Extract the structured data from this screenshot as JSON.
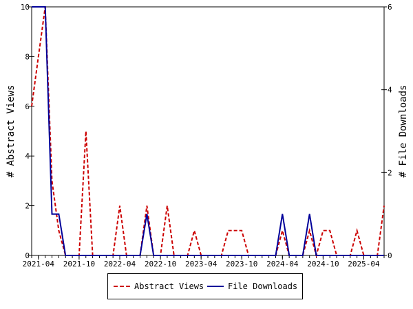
{
  "chart_data": {
    "type": "line",
    "x_tick_labels": [
      "2021-04",
      "2021-10",
      "2022-04",
      "2022-10",
      "2023-04",
      "2023-10",
      "2024-04",
      "2024-10",
      "2025-04"
    ],
    "x_range": [
      "2021-03",
      "2025-07"
    ],
    "y_left": {
      "label": "# Abstract Views",
      "range": [
        0,
        10
      ],
      "ticks": [
        0,
        2,
        4,
        6,
        8,
        10
      ]
    },
    "y_right": {
      "label": "# File Downloads",
      "range": [
        0,
        6
      ],
      "ticks": [
        0,
        2,
        4,
        6
      ]
    },
    "series": [
      {
        "name": "Abstract Views",
        "axis": "left",
        "color": "#cc0000",
        "style": "dashed",
        "points": [
          [
            "2021-03",
            6
          ],
          [
            "2021-04",
            8
          ],
          [
            "2021-05",
            10
          ],
          [
            "2021-06",
            3
          ],
          [
            "2021-07",
            1
          ],
          [
            "2021-08",
            0
          ],
          [
            "2021-09",
            0
          ],
          [
            "2021-10",
            0
          ],
          [
            "2021-11",
            5
          ],
          [
            "2021-12",
            0
          ],
          [
            "2022-01",
            0
          ],
          [
            "2022-02",
            0
          ],
          [
            "2022-03",
            0
          ],
          [
            "2022-04",
            2
          ],
          [
            "2022-05",
            0
          ],
          [
            "2022-06",
            0
          ],
          [
            "2022-07",
            0
          ],
          [
            "2022-08",
            2
          ],
          [
            "2022-09",
            0
          ],
          [
            "2022-10",
            0
          ],
          [
            "2022-11",
            2
          ],
          [
            "2022-12",
            0
          ],
          [
            "2023-01",
            0
          ],
          [
            "2023-02",
            0
          ],
          [
            "2023-03",
            1
          ],
          [
            "2023-04",
            0
          ],
          [
            "2023-05",
            0
          ],
          [
            "2023-06",
            0
          ],
          [
            "2023-07",
            0
          ],
          [
            "2023-08",
            1
          ],
          [
            "2023-09",
            1
          ],
          [
            "2023-10",
            1
          ],
          [
            "2023-11",
            0
          ],
          [
            "2023-12",
            0
          ],
          [
            "2024-01",
            0
          ],
          [
            "2024-02",
            0
          ],
          [
            "2024-03",
            0
          ],
          [
            "2024-04",
            1
          ],
          [
            "2024-05",
            0
          ],
          [
            "2024-06",
            0
          ],
          [
            "2024-07",
            0
          ],
          [
            "2024-08",
            1
          ],
          [
            "2024-09",
            0
          ],
          [
            "2024-10",
            1
          ],
          [
            "2024-11",
            1
          ],
          [
            "2024-12",
            0
          ],
          [
            "2025-01",
            0
          ],
          [
            "2025-02",
            0
          ],
          [
            "2025-03",
            1
          ],
          [
            "2025-04",
            0
          ],
          [
            "2025-05",
            0
          ],
          [
            "2025-06",
            0
          ],
          [
            "2025-07",
            2
          ]
        ]
      },
      {
        "name": "File Downloads",
        "axis": "right",
        "color": "#000099",
        "style": "solid",
        "points": [
          [
            "2021-03",
            6
          ],
          [
            "2021-04",
            6
          ],
          [
            "2021-05",
            6
          ],
          [
            "2021-06",
            1
          ],
          [
            "2021-07",
            1
          ],
          [
            "2021-08",
            0
          ],
          [
            "2021-09",
            0
          ],
          [
            "2021-10",
            0
          ],
          [
            "2021-11",
            0
          ],
          [
            "2021-12",
            0
          ],
          [
            "2022-01",
            0
          ],
          [
            "2022-02",
            0
          ],
          [
            "2022-03",
            0
          ],
          [
            "2022-04",
            0
          ],
          [
            "2022-05",
            0
          ],
          [
            "2022-06",
            0
          ],
          [
            "2022-07",
            0
          ],
          [
            "2022-08",
            1
          ],
          [
            "2022-09",
            0
          ],
          [
            "2022-10",
            0
          ],
          [
            "2022-11",
            0
          ],
          [
            "2022-12",
            0
          ],
          [
            "2023-01",
            0
          ],
          [
            "2023-02",
            0
          ],
          [
            "2023-03",
            0
          ],
          [
            "2023-04",
            0
          ],
          [
            "2023-05",
            0
          ],
          [
            "2023-06",
            0
          ],
          [
            "2023-07",
            0
          ],
          [
            "2023-08",
            0
          ],
          [
            "2023-09",
            0
          ],
          [
            "2023-10",
            0
          ],
          [
            "2023-11",
            0
          ],
          [
            "2023-12",
            0
          ],
          [
            "2024-01",
            0
          ],
          [
            "2024-02",
            0
          ],
          [
            "2024-03",
            0
          ],
          [
            "2024-04",
            1
          ],
          [
            "2024-05",
            0
          ],
          [
            "2024-06",
            0
          ],
          [
            "2024-07",
            0
          ],
          [
            "2024-08",
            1
          ],
          [
            "2024-09",
            0
          ],
          [
            "2024-10",
            0
          ],
          [
            "2024-11",
            0
          ],
          [
            "2024-12",
            0
          ],
          [
            "2025-01",
            0
          ],
          [
            "2025-02",
            0
          ],
          [
            "2025-03",
            0
          ],
          [
            "2025-04",
            0
          ],
          [
            "2025-05",
            0
          ],
          [
            "2025-06",
            0
          ],
          [
            "2025-07",
            0
          ]
        ]
      }
    ],
    "grid": false,
    "legend_position": "bottom"
  }
}
